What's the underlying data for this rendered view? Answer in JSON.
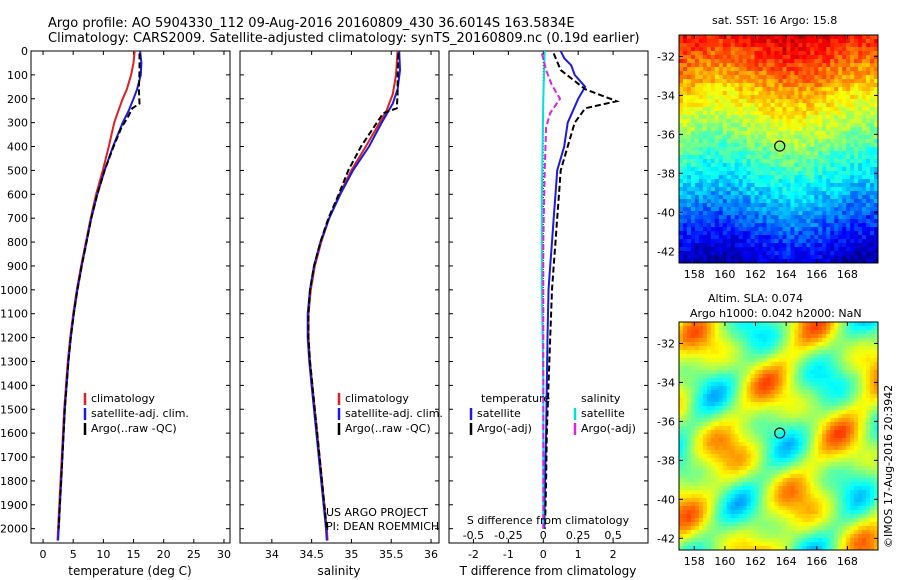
{
  "header": {
    "line1": "Argo profile: AO 5904330_112 09-Aug-2016 20160809_430 36.6014S 163.5834E",
    "line2": "Climatology: CARS2009. Satellite-adjusted climatology: synTS_20160809.nc (0.19d earlier)"
  },
  "side_label": "©IMOS 17-Aug-2016 20:3942",
  "colors": {
    "climatology": "#e02020",
    "satellite": "#1a1ae0",
    "argo": "#000000",
    "sal_satellite": "#00e0e0",
    "sal_argo": "#e020e0"
  },
  "chart_data": [
    {
      "type": "line",
      "xlabel": "temperature (deg C)",
      "xlim": [
        -2,
        31
      ],
      "xticks": [
        "0",
        "5",
        "10",
        "15",
        "20",
        "25",
        "30"
      ],
      "ylim": [
        0,
        2060
      ],
      "yticks": [
        "0",
        "100",
        "200",
        "300",
        "400",
        "500",
        "600",
        "700",
        "800",
        "900",
        "1000",
        "1100",
        "1200",
        "1300",
        "1400",
        "1500",
        "1600",
        "1700",
        "1800",
        "1900",
        "2000"
      ],
      "legend": [
        "climatology",
        "satellite-adj. clim.",
        "Argo(..raw -QC)"
      ],
      "series": [
        {
          "name": "climatology",
          "color": "#e02020",
          "points": [
            [
              15.2,
              0
            ],
            [
              15.0,
              50
            ],
            [
              14.6,
              100
            ],
            [
              13.9,
              160
            ],
            [
              13.2,
              200
            ],
            [
              12.5,
              250
            ],
            [
              11.8,
              300
            ],
            [
              10.9,
              400
            ],
            [
              9.9,
              500
            ],
            [
              8.8,
              600
            ],
            [
              7.9,
              700
            ],
            [
              7.1,
              800
            ],
            [
              6.3,
              900
            ],
            [
              5.6,
              1000
            ],
            [
              5.0,
              1100
            ],
            [
              4.5,
              1200
            ],
            [
              4.1,
              1300
            ],
            [
              3.8,
              1400
            ],
            [
              3.5,
              1500
            ],
            [
              3.3,
              1600
            ],
            [
              3.1,
              1700
            ],
            [
              2.9,
              1800
            ],
            [
              2.7,
              1900
            ],
            [
              2.5,
              2000
            ],
            [
              2.4,
              2050
            ]
          ]
        },
        {
          "name": "satellite-adj. clim.",
          "color": "#1a1ae0",
          "points": [
            [
              16.1,
              0
            ],
            [
              16.3,
              50
            ],
            [
              16.2,
              100
            ],
            [
              15.6,
              160
            ],
            [
              15.0,
              200
            ],
            [
              14.2,
              250
            ],
            [
              13.2,
              300
            ],
            [
              11.6,
              400
            ],
            [
              10.2,
              500
            ],
            [
              9.0,
              600
            ],
            [
              8.0,
              700
            ],
            [
              7.2,
              800
            ],
            [
              6.4,
              900
            ],
            [
              5.7,
              1000
            ],
            [
              5.1,
              1100
            ],
            [
              4.6,
              1200
            ],
            [
              4.2,
              1300
            ],
            [
              3.9,
              1400
            ],
            [
              3.6,
              1500
            ],
            [
              3.4,
              1600
            ],
            [
              3.2,
              1700
            ],
            [
              3.0,
              1800
            ],
            [
              2.8,
              1900
            ],
            [
              2.6,
              2000
            ],
            [
              2.5,
              2050
            ]
          ]
        },
        {
          "name": "Argo(..raw -QC)",
          "color": "#000000",
          "points": [
            [
              16.0,
              10
            ],
            [
              16.0,
              80
            ],
            [
              15.9,
              160
            ],
            [
              16.0,
              220
            ],
            [
              14.8,
              240
            ],
            [
              14.0,
              280
            ],
            [
              13.0,
              320
            ],
            [
              11.7,
              400
            ],
            [
              10.2,
              500
            ],
            [
              9.0,
              600
            ],
            [
              8.0,
              700
            ],
            [
              7.2,
              800
            ],
            [
              6.4,
              900
            ],
            [
              5.7,
              1000
            ],
            [
              5.1,
              1100
            ],
            [
              4.6,
              1200
            ],
            [
              4.2,
              1300
            ],
            [
              3.9,
              1400
            ],
            [
              3.6,
              1500
            ],
            [
              3.4,
              1600
            ],
            [
              3.2,
              1700
            ],
            [
              3.0,
              1800
            ],
            [
              2.8,
              1900
            ],
            [
              2.6,
              2000
            ]
          ]
        }
      ]
    },
    {
      "type": "line",
      "xlabel": "salinity",
      "xlim": [
        33.6,
        36.1
      ],
      "xticks": [
        "34",
        "34.5",
        "35",
        "35.5",
        "36"
      ],
      "ylim": [
        0,
        2060
      ],
      "legend": [
        "climatology",
        "satellite-adj. clim.",
        "Argo(..raw -QC)"
      ],
      "footnote": [
        "US ARGO PROJECT",
        "PI: DEAN ROEMMICH"
      ],
      "series": [
        {
          "name": "climatology",
          "color": "#e02020",
          "points": [
            [
              35.58,
              0
            ],
            [
              35.56,
              100
            ],
            [
              35.52,
              180
            ],
            [
              35.44,
              250
            ],
            [
              35.32,
              320
            ],
            [
              35.18,
              400
            ],
            [
              35.0,
              500
            ],
            [
              34.85,
              600
            ],
            [
              34.72,
              700
            ],
            [
              34.62,
              800
            ],
            [
              34.54,
              900
            ],
            [
              34.49,
              1000
            ],
            [
              34.46,
              1100
            ],
            [
              34.46,
              1200
            ],
            [
              34.48,
              1300
            ],
            [
              34.51,
              1400
            ],
            [
              34.54,
              1500
            ],
            [
              34.57,
              1600
            ],
            [
              34.6,
              1700
            ],
            [
              34.63,
              1800
            ],
            [
              34.66,
              1900
            ],
            [
              34.69,
              2000
            ],
            [
              34.7,
              2050
            ]
          ]
        },
        {
          "name": "satellite-adj. clim.",
          "color": "#1a1ae0",
          "points": [
            [
              35.6,
              0
            ],
            [
              35.61,
              80
            ],
            [
              35.58,
              160
            ],
            [
              35.52,
              220
            ],
            [
              35.38,
              300
            ],
            [
              35.22,
              400
            ],
            [
              35.02,
              500
            ],
            [
              34.86,
              600
            ],
            [
              34.72,
              700
            ],
            [
              34.61,
              800
            ],
            [
              34.53,
              900
            ],
            [
              34.48,
              1000
            ],
            [
              34.45,
              1100
            ],
            [
              34.45,
              1200
            ],
            [
              34.47,
              1300
            ],
            [
              34.5,
              1400
            ],
            [
              34.53,
              1500
            ],
            [
              34.56,
              1600
            ],
            [
              34.59,
              1700
            ],
            [
              34.62,
              1800
            ],
            [
              34.65,
              1900
            ],
            [
              34.68,
              2000
            ],
            [
              34.69,
              2050
            ]
          ]
        },
        {
          "name": "Argo(..raw -QC)",
          "color": "#000000",
          "points": [
            [
              35.59,
              10
            ],
            [
              35.58,
              100
            ],
            [
              35.58,
              180
            ],
            [
              35.57,
              240
            ],
            [
              35.4,
              260
            ],
            [
              35.28,
              320
            ],
            [
              35.12,
              400
            ],
            [
              34.96,
              500
            ],
            [
              34.84,
              600
            ],
            [
              34.71,
              700
            ],
            [
              34.61,
              800
            ],
            [
              34.53,
              900
            ],
            [
              34.48,
              1000
            ],
            [
              34.46,
              1100
            ],
            [
              34.46,
              1200
            ],
            [
              34.48,
              1300
            ],
            [
              34.51,
              1400
            ],
            [
              34.54,
              1500
            ],
            [
              34.57,
              1600
            ],
            [
              34.6,
              1700
            ],
            [
              34.63,
              1800
            ],
            [
              34.66,
              1900
            ],
            [
              34.69,
              2000
            ]
          ]
        }
      ]
    },
    {
      "type": "line",
      "xlabel": "T difference from climatology",
      "x2label": "S difference from climatology",
      "xlim": [
        -2.7,
        3.0
      ],
      "xticks": [
        "-2",
        "-1",
        "0",
        "1",
        "2"
      ],
      "x2lim": [
        -0.675,
        0.75
      ],
      "x2ticks": [
        "-0.5",
        "-0.25",
        "0",
        "0.25",
        "0.5"
      ],
      "ylim": [
        0,
        2060
      ],
      "legend_temperature": {
        "title": "temperature",
        "items": [
          "satellite",
          "Argo(-adj)"
        ]
      },
      "legend_salinity": {
        "title": "salinity",
        "items": [
          "satellite",
          "Argo(-adj)"
        ]
      },
      "series": [
        {
          "name": "temperature satellite",
          "color": "#1a1ae0",
          "points": [
            [
              0.5,
              0
            ],
            [
              0.6,
              30
            ],
            [
              0.8,
              60
            ],
            [
              0.9,
              100
            ],
            [
              1.2,
              150
            ],
            [
              1.0,
              200
            ],
            [
              0.7,
              300
            ],
            [
              0.6,
              400
            ],
            [
              0.4,
              500
            ],
            [
              0.35,
              600
            ],
            [
              0.3,
              700
            ],
            [
              0.25,
              800
            ],
            [
              0.2,
              900
            ],
            [
              0.15,
              1000
            ],
            [
              0.12,
              1200
            ],
            [
              0.1,
              1400
            ],
            [
              0.08,
              1600
            ],
            [
              0.05,
              1800
            ],
            [
              0.03,
              2000
            ]
          ]
        },
        {
          "name": "temperature Argo(-adj)",
          "color": "#000000",
          "points": [
            [
              0.3,
              10
            ],
            [
              0.5,
              80
            ],
            [
              1.2,
              160
            ],
            [
              2.1,
              210
            ],
            [
              1.2,
              240
            ],
            [
              0.9,
              300
            ],
            [
              0.7,
              400
            ],
            [
              0.5,
              500
            ],
            [
              0.45,
              600
            ],
            [
              0.4,
              700
            ],
            [
              0.35,
              800
            ],
            [
              0.3,
              900
            ],
            [
              0.25,
              1000
            ],
            [
              0.2,
              1200
            ],
            [
              0.15,
              1400
            ],
            [
              0.1,
              1600
            ],
            [
              0.08,
              1800
            ],
            [
              0.05,
              2000
            ]
          ]
        },
        {
          "name": "salinity satellite",
          "color": "#00e0e0",
          "points": [
            [
              0.01,
              0
            ],
            [
              0.0,
              200
            ],
            [
              -0.01,
              600
            ],
            [
              -0.01,
              1000
            ],
            [
              0.0,
              1400
            ],
            [
              0.0,
              1800
            ],
            [
              0.0,
              2000
            ]
          ]
        },
        {
          "name": "salinity Argo(-adj)",
          "color": "#e020e0",
          "points": [
            [
              -0.01,
              10
            ],
            [
              0.02,
              80
            ],
            [
              0.06,
              140
            ],
            [
              0.12,
              200
            ],
            [
              0.05,
              260
            ],
            [
              0.02,
              320
            ],
            [
              0.01,
              500
            ],
            [
              0.0,
              800
            ],
            [
              0.0,
              1200
            ],
            [
              0.0,
              1600
            ],
            [
              0.0,
              2000
            ]
          ]
        }
      ]
    },
    {
      "type": "heatmap",
      "title": "sat. SST: 16 Argo: 15.8",
      "xticks": [
        "158",
        "160",
        "162",
        "164",
        "166",
        "168"
      ],
      "yticks": [
        "-32",
        "-34",
        "-36",
        "-38",
        "-40",
        "-42"
      ],
      "xlim": [
        157,
        170
      ],
      "ylim": [
        -42.6,
        -30.9
      ],
      "marker": [
        163.58,
        -36.6
      ],
      "colormap": "jet"
    },
    {
      "type": "heatmap",
      "title": "Altim. SLA: 0.074",
      "subtitle": "Argo h1000: 0.042 h2000: NaN",
      "xticks": [
        "158",
        "160",
        "162",
        "164",
        "166",
        "168"
      ],
      "yticks": [
        "-32",
        "-34",
        "-36",
        "-38",
        "-40",
        "-42"
      ],
      "xlim": [
        157,
        170
      ],
      "ylim": [
        -42.6,
        -30.9
      ],
      "marker": [
        163.58,
        -36.6
      ],
      "colormap": "jet"
    }
  ]
}
